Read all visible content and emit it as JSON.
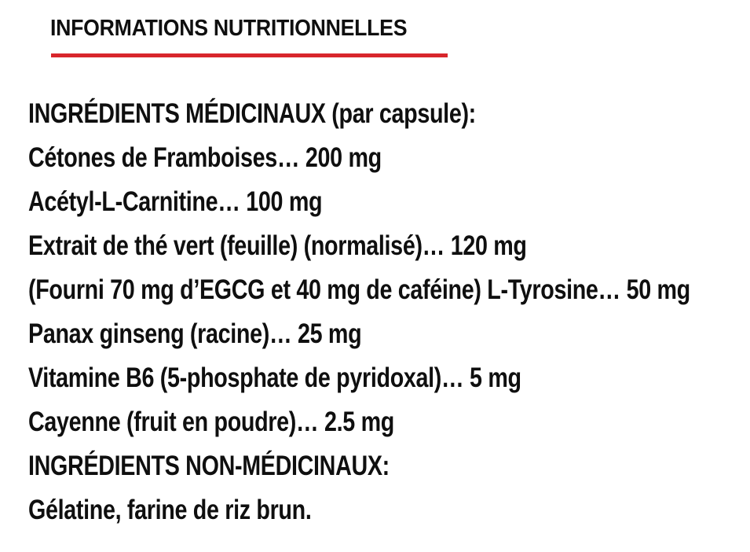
{
  "colors": {
    "background": "#ffffff",
    "text": "#0f0f0f",
    "accent_red": "#d8262c"
  },
  "header": {
    "title": "INFORMATIONS NUTRITIONNELLES"
  },
  "panel": {
    "display_lines": [
      "INGRÉDIENTS MÉDICINAUX (par capsule):",
      "Cétones de Framboises… 200 mg",
      "Acétyl-L-Carnitine… 100 mg",
      "Extrait de thé vert (feuille) (normalisé)… 120 mg",
      "(Fourni 70 mg d’EGCG et 40 mg de caféine) L-Tyrosine… 50 mg",
      "Panax ginseng (racine)… 25 mg",
      "Vitamine B6 (5-phosphate de pyridoxal)… 5 mg",
      "Cayenne (fruit en poudre)… 2.5 mg",
      "INGRÉDIENTS NON-MÉDICINAUX:",
      "Gélatine, farine de riz brun."
    ]
  },
  "ingredients": {
    "medicinal_heading": "INGRÉDIENTS MÉDICINAUX (par capsule):",
    "medicinal": [
      {
        "name": "Cétones de Framboises",
        "amount": "200 mg"
      },
      {
        "name": "Acétyl-L-Carnitine",
        "amount": "100 mg"
      },
      {
        "name": "Extrait de thé vert (feuille) (normalisé)",
        "amount": "120 mg",
        "note": "Fourni 70 mg d’EGCG et 40 mg de caféine"
      },
      {
        "name": "L-Tyrosine",
        "amount": "50 mg"
      },
      {
        "name": "Panax ginseng (racine)",
        "amount": "25 mg"
      },
      {
        "name": "Vitamine B6 (5-phosphate de pyridoxal)",
        "amount": "5 mg"
      },
      {
        "name": "Cayenne (fruit en poudre)",
        "amount": "2.5 mg"
      }
    ],
    "non_medicinal_heading": "INGRÉDIENTS NON-MÉDICINAUX:",
    "non_medicinal": "Gélatine, farine de riz brun."
  }
}
